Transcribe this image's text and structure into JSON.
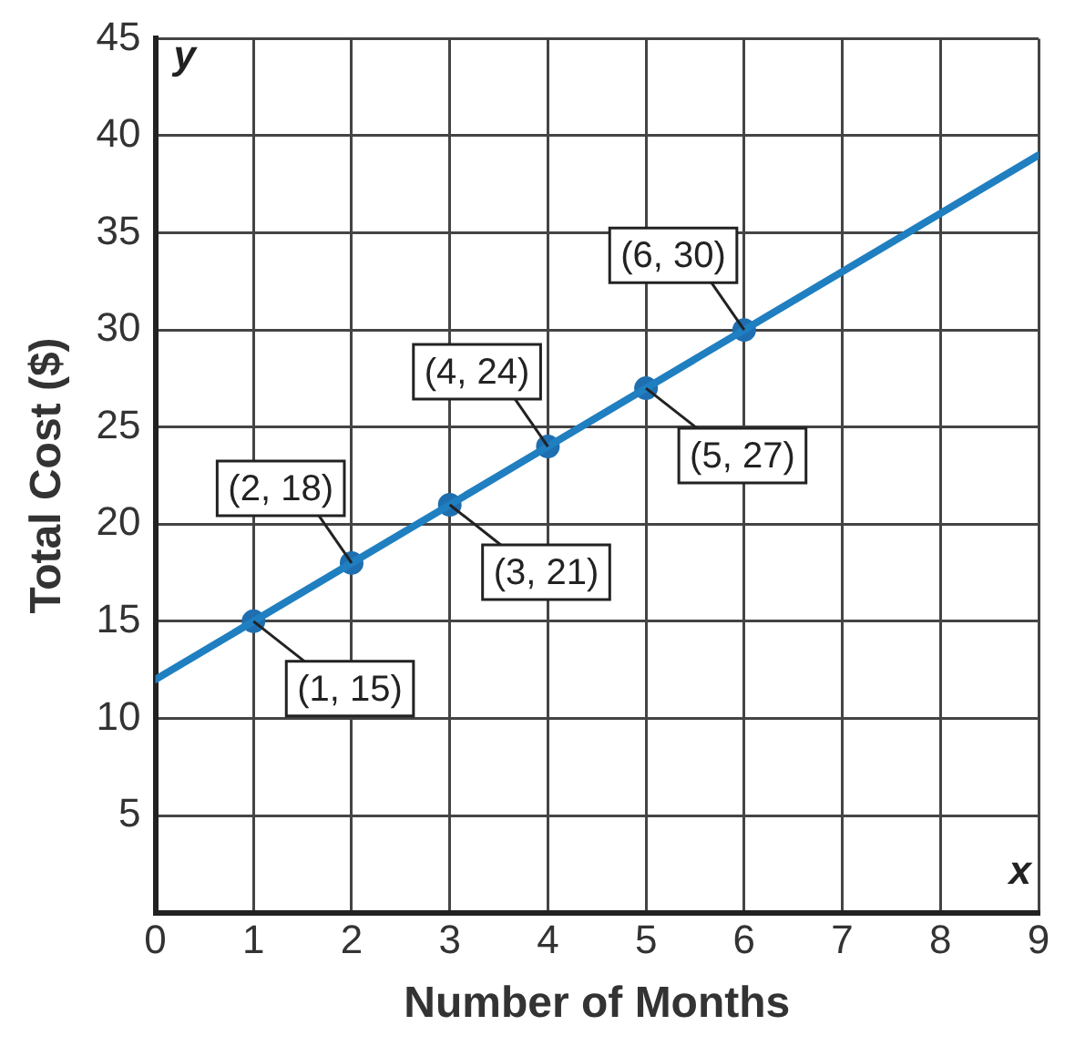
{
  "chart_data": {
    "type": "line",
    "xlabel": "Number of Months",
    "ylabel": "Total Cost ($)",
    "xlim": [
      0,
      9
    ],
    "xticks": [
      0,
      1,
      2,
      3,
      4,
      5,
      6,
      7,
      8,
      9
    ],
    "ylim": [
      0,
      45
    ],
    "yticks": [
      5,
      10,
      15,
      20,
      25,
      30,
      35,
      40,
      45
    ],
    "grid": true,
    "series": [
      {
        "type": "line",
        "color": "#1f7fc0",
        "x": [
          0,
          9
        ],
        "values": [
          12,
          39
        ],
        "marker": "none"
      },
      {
        "type": "scatter",
        "color": "#1f6fb0",
        "x": [
          1,
          2,
          3,
          4,
          5,
          6
        ],
        "values": [
          15,
          18,
          21,
          24,
          27,
          30
        ],
        "marker": "circle"
      }
    ],
    "annotations": [
      "y",
      "x",
      {
        "text": "(1, 15)",
        "x": 1,
        "y": 15
      },
      {
        "text": "(2, 18)",
        "x": 2,
        "y": 18
      },
      {
        "text": "(3, 21)",
        "x": 3,
        "y": 21
      },
      {
        "text": "(4, 24)",
        "x": 4,
        "y": 24
      },
      {
        "text": "(5, 27)",
        "x": 5,
        "y": 27
      },
      {
        "text": "(6, 30)",
        "x": 6,
        "y": 30
      }
    ]
  }
}
